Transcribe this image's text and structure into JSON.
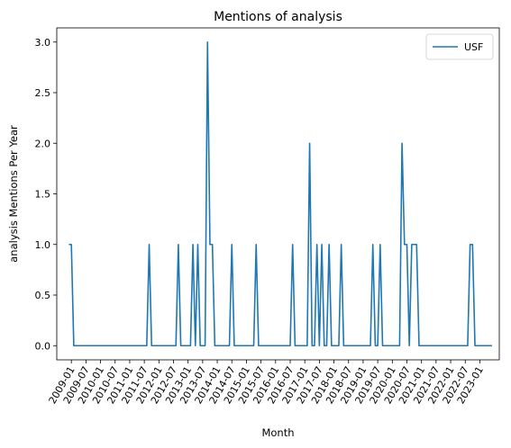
{
  "chart_data": {
    "type": "line",
    "title": "Mentions of analysis",
    "xlabel": "Month",
    "ylabel": "analysis Mentions Per Year",
    "ylim": [
      -0.14,
      3.14
    ],
    "xlim": [
      "2008-07",
      "2023-09"
    ],
    "yticks": [
      "0.0",
      "0.5",
      "1.0",
      "1.5",
      "2.0",
      "2.5",
      "3.0"
    ],
    "xticks": [
      "2009-01",
      "2009-07",
      "2010-01",
      "2010-07",
      "2011-01",
      "2011-07",
      "2012-01",
      "2012-07",
      "2013-01",
      "2013-07",
      "2014-01",
      "2014-07",
      "2015-01",
      "2015-07",
      "2016-01",
      "2016-07",
      "2017-01",
      "2017-07",
      "2018-01",
      "2018-07",
      "2019-01",
      "2019-07",
      "2020-01",
      "2020-07",
      "2021-01",
      "2021-07",
      "2022-01",
      "2022-07",
      "2023-01"
    ],
    "legend": {
      "position": "top-right"
    },
    "grid": false,
    "series": [
      {
        "name": "USF",
        "color": "#1f77b4",
        "points": [
          [
            "2008-12",
            1
          ],
          [
            "2009-01",
            1
          ],
          [
            "2009-02",
            0
          ],
          [
            "2011-08",
            0
          ],
          [
            "2011-09",
            1
          ],
          [
            "2011-10",
            0
          ],
          [
            "2012-08",
            0
          ],
          [
            "2012-09",
            1
          ],
          [
            "2012-10",
            0
          ],
          [
            "2013-02",
            0
          ],
          [
            "2013-03",
            1
          ],
          [
            "2013-04",
            0
          ],
          [
            "2013-05",
            1
          ],
          [
            "2013-06",
            0
          ],
          [
            "2013-08",
            0
          ],
          [
            "2013-09",
            3
          ],
          [
            "2013-10",
            1
          ],
          [
            "2013-11",
            1
          ],
          [
            "2013-12",
            0
          ],
          [
            "2014-06",
            0
          ],
          [
            "2014-07",
            1
          ],
          [
            "2014-08",
            0
          ],
          [
            "2015-04",
            0
          ],
          [
            "2015-05",
            1
          ],
          [
            "2015-06",
            0
          ],
          [
            "2016-07",
            0
          ],
          [
            "2016-08",
            1
          ],
          [
            "2016-09",
            0
          ],
          [
            "2017-02",
            0
          ],
          [
            "2017-03",
            2
          ],
          [
            "2017-04",
            0
          ],
          [
            "2017-05",
            0
          ],
          [
            "2017-06",
            1
          ],
          [
            "2017-07",
            0
          ],
          [
            "2017-08",
            1
          ],
          [
            "2017-09",
            0
          ],
          [
            "2017-10",
            0
          ],
          [
            "2017-11",
            1
          ],
          [
            "2017-12",
            0
          ],
          [
            "2018-03",
            0
          ],
          [
            "2018-04",
            1
          ],
          [
            "2018-05",
            0
          ],
          [
            "2019-04",
            0
          ],
          [
            "2019-05",
            1
          ],
          [
            "2019-06",
            0
          ],
          [
            "2019-07",
            0
          ],
          [
            "2019-08",
            1
          ],
          [
            "2019-09",
            0
          ],
          [
            "2020-04",
            0
          ],
          [
            "2020-05",
            2
          ],
          [
            "2020-06",
            1
          ],
          [
            "2020-07",
            1
          ],
          [
            "2020-08",
            0
          ],
          [
            "2020-09",
            1
          ],
          [
            "2020-10",
            1
          ],
          [
            "2020-11",
            1
          ],
          [
            "2020-12",
            0
          ],
          [
            "2022-08",
            0
          ],
          [
            "2022-09",
            1
          ],
          [
            "2022-10",
            1
          ],
          [
            "2022-11",
            0
          ],
          [
            "2023-06",
            0
          ]
        ]
      }
    ]
  }
}
